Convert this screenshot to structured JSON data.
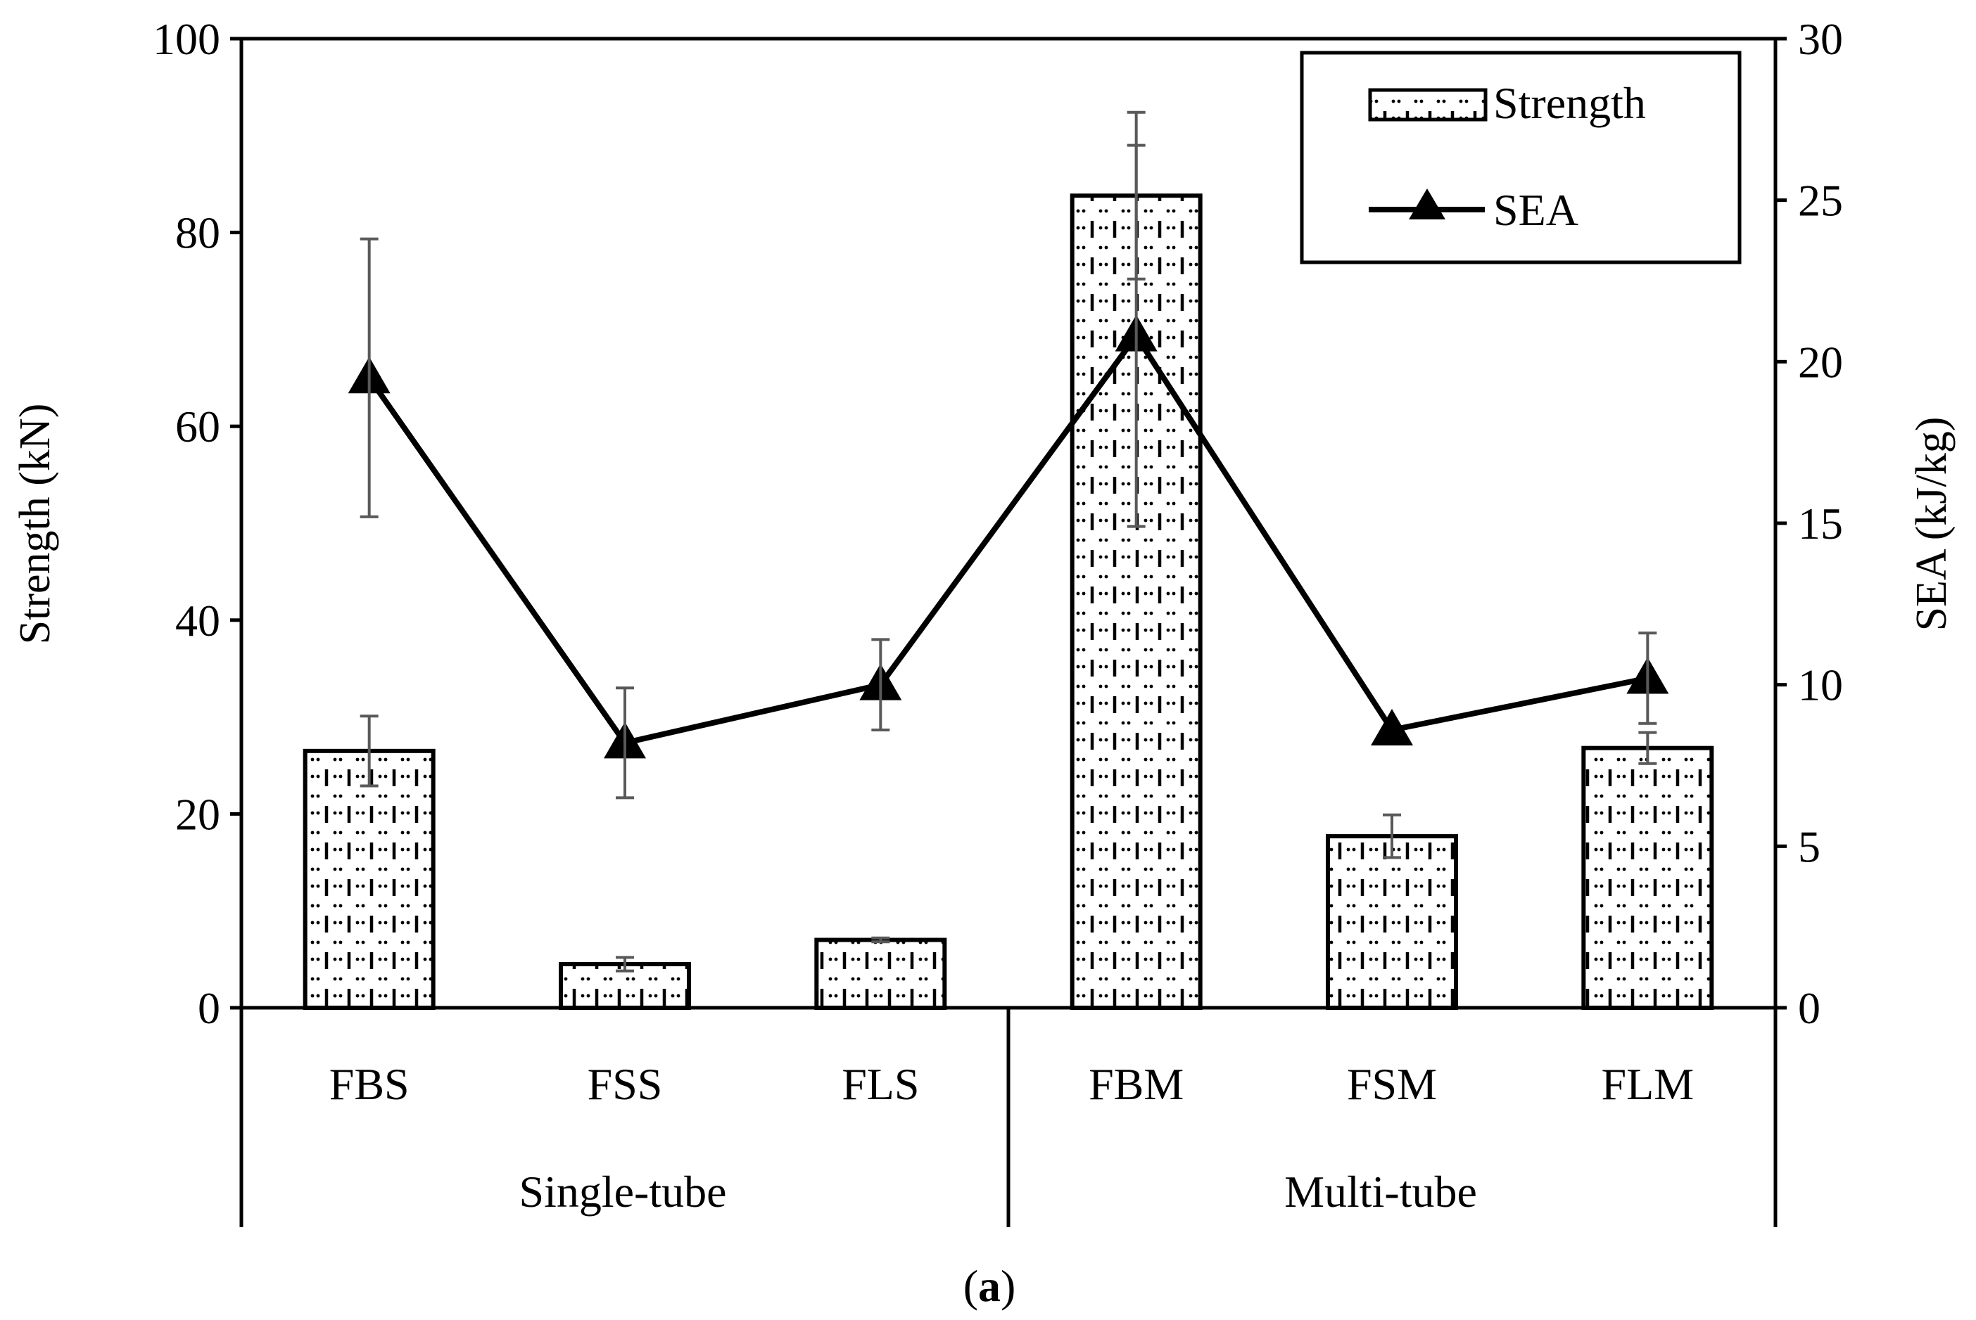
{
  "panel_label": "a",
  "chart_data": {
    "type": "bar",
    "categories": [
      "FBS",
      "FSS",
      "FLS",
      "FBM",
      "FSM",
      "FLM"
    ],
    "groups": [
      {
        "label": "Single-tube",
        "categories": [
          "FBS",
          "FSS",
          "FLS"
        ]
      },
      {
        "label": "Multi-tube",
        "categories": [
          "FBM",
          "FSM",
          "FLM"
        ]
      }
    ],
    "series": [
      {
        "name": "Strength",
        "type": "bar",
        "axis": "left",
        "values": [
          26.5,
          4.5,
          7.0,
          83.8,
          17.7,
          26.8
        ],
        "error": [
          3.6,
          0.7,
          0.2,
          8.6,
          2.2,
          1.6
        ],
        "pattern": "dotted-dashed"
      },
      {
        "name": "SEA",
        "type": "line",
        "axis": "right",
        "marker": "triangle",
        "values": [
          19.5,
          8.2,
          10.0,
          20.8,
          8.6,
          10.2
        ],
        "error": [
          4.3,
          1.7,
          1.4,
          5.9,
          0.0,
          1.4
        ]
      }
    ],
    "y_left": {
      "label": "Strength (kN)",
      "range": [
        0,
        100
      ],
      "ticks": [
        0,
        20,
        40,
        60,
        80,
        100
      ]
    },
    "y_right": {
      "label": "SEA (kJ/kg)",
      "range": [
        0,
        30
      ],
      "ticks": [
        0,
        5,
        10,
        15,
        20,
        25,
        30
      ]
    },
    "grid": false,
    "legend": {
      "position": "top-right",
      "entries": [
        "Strength",
        "SEA"
      ]
    },
    "colors": {
      "bar_stroke": "#000000",
      "line": "#000000",
      "error_bar": "#595959",
      "background": "#ffffff"
    }
  }
}
